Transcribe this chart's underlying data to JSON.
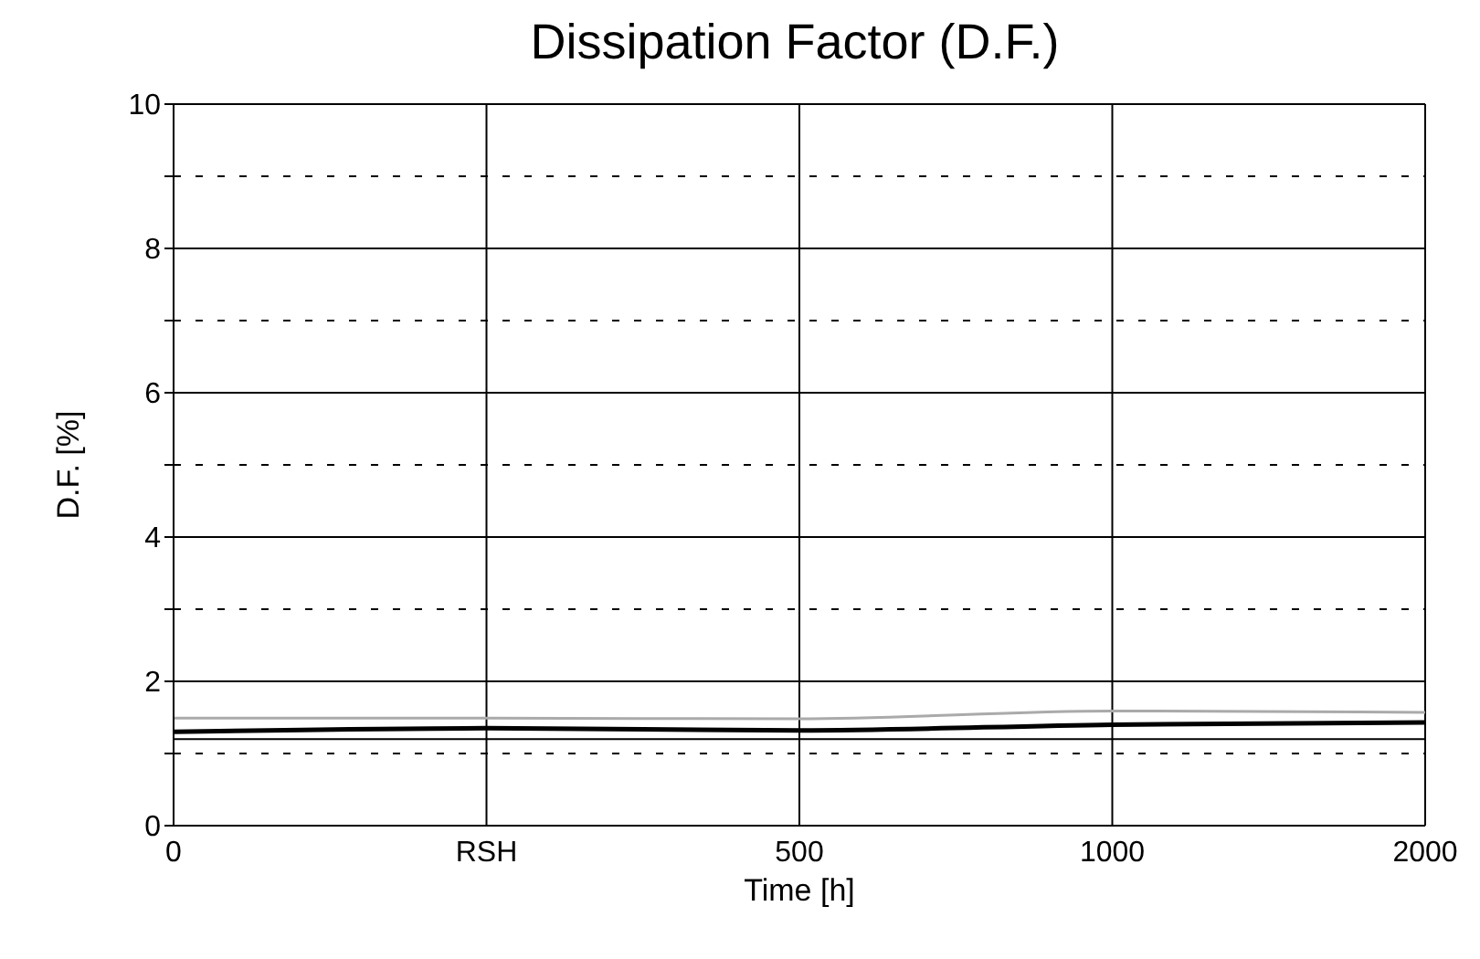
{
  "chart_data": {
    "type": "line",
    "title": "Dissipation Factor (D.F.)",
    "xlabel": "Time [h]",
    "ylabel": "D.F. [%]",
    "categories": [
      "0",
      "RSH",
      "500",
      "1000",
      "2000"
    ],
    "series": [
      {
        "color": "#aaaaaa",
        "values": [
          1.49,
          1.49,
          1.48,
          1.59,
          1.57
        ]
      },
      {
        "color": "#000000",
        "values": [
          1.3,
          1.35,
          1.32,
          1.4,
          1.43
        ]
      }
    ],
    "ylim": [
      0,
      10
    ],
    "yticks": [
      0,
      {
        "value": 1,
        "label": null
      },
      2,
      {
        "value": 3,
        "label": null
      },
      4,
      {
        "value": 5,
        "label": null
      },
      6,
      {
        "value": 7,
        "label": null
      },
      8,
      {
        "value": 9,
        "label": null
      },
      10
    ],
    "ref_lines": [
      {
        "axis": "y",
        "value": 1.2,
        "color": "#000000"
      }
    ],
    "grid": true,
    "marker": "none",
    "line_style": "solid"
  }
}
